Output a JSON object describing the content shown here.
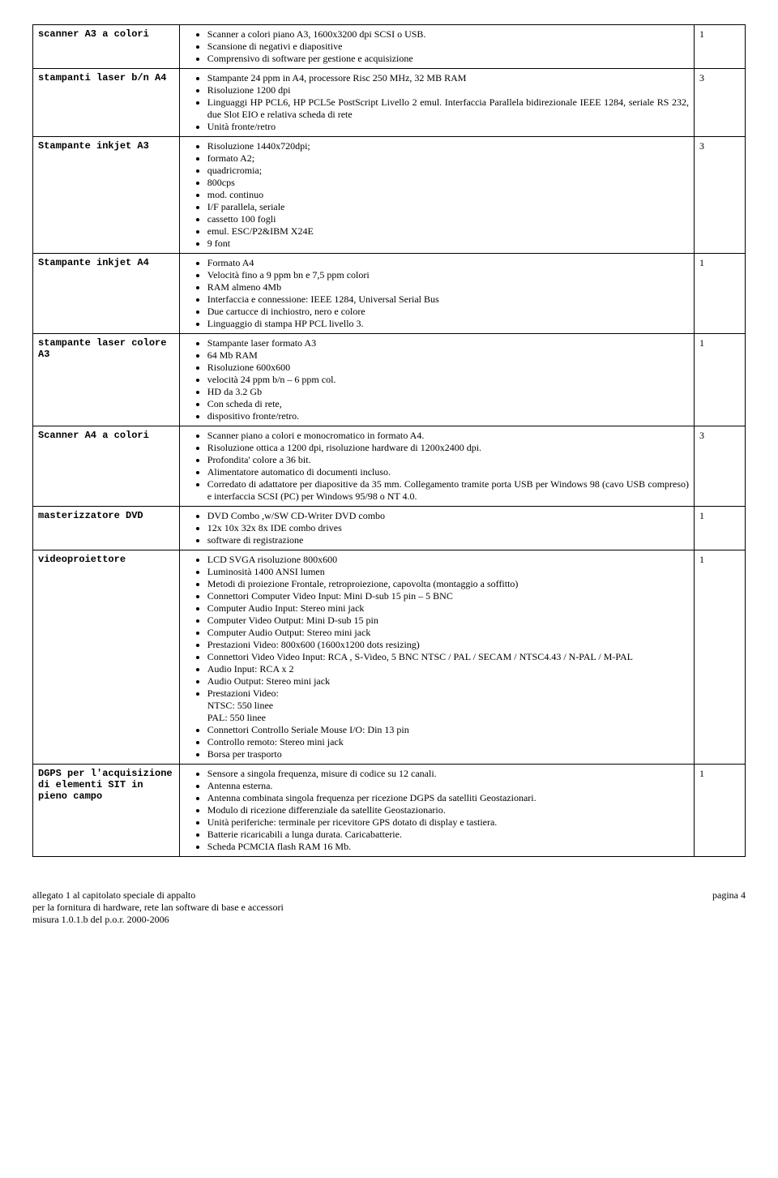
{
  "rows": [
    {
      "label": "scanner A3 a colori",
      "qty": "1",
      "items": [
        "Scanner a colori piano A3, 1600x3200 dpi SCSI o USB.",
        "Scansione di negativi e diapositive",
        "Comprensivo di software per gestione e acquisizione"
      ]
    },
    {
      "label": "stampanti laser b/n A4",
      "qty": "3",
      "items": [
        "Stampante 24 ppm in A4, processore Risc 250 MHz, 32 MB RAM",
        "Risoluzione 1200 dpi",
        "Linguaggi HP PCL6, HP PCL5e PostScript Livello 2 emul. Interfaccia Parallela bidirezionale IEEE 1284, seriale RS 232, due Slot EIO  e relativa scheda di rete",
        "Unità fronte/retro"
      ]
    },
    {
      "label": "Stampante inkjet A3",
      "qty": "3",
      "items": [
        "Risoluzione 1440x720dpi;",
        "formato A2;",
        "quadricromia;",
        "800cps",
        "mod. continuo",
        "I/F parallela, seriale",
        "cassetto 100 fogli",
        "emul. ESC/P2&IBM X24E",
        "9 font"
      ]
    },
    {
      "label": "Stampante inkjet A4",
      "qty": "1",
      "items": [
        "Formato A4",
        "Velocità fino a 9 ppm bn e 7,5 ppm colori",
        "RAM almeno 4Mb",
        "Interfaccia e connessione: IEEE 1284, Universal Serial Bus",
        "Due cartucce di inchiostro, nero e colore",
        "Linguaggio di stampa HP PCL livello 3."
      ]
    },
    {
      "label": "stampante laser colore A3",
      "qty": "1",
      "items": [
        "Stampante laser formato A3",
        "64 Mb RAM",
        "Risoluzione 600x600",
        "velocità 24 ppm b/n – 6 ppm col.",
        "HD da 3.2 Gb",
        "Con scheda di rete,",
        "dispositivo fronte/retro."
      ]
    },
    {
      "label": "Scanner A4 a colori",
      "qty": "3",
      "items": [
        "Scanner piano a colori e monocromatico in formato A4.",
        "Risoluzione ottica a 1200 dpi, risoluzione hardware di 1200x2400 dpi.",
        "Profondita' colore a 36 bit.",
        "Alimentatore automatico di documenti incluso.",
        "Corredato di adattatore per diapositive da 35 mm. Collegamento tramite porta USB per Windows 98 (cavo USB compreso) e interfaccia SCSI (PC) per Windows 95/98 o NT 4.0."
      ]
    },
    {
      "label": "masterizzatore DVD",
      "qty": "1",
      "items": [
        "DVD Combo ,w/SW CD-Writer DVD combo",
        "12x 10x 32x 8x IDE combo drives",
        "software di registrazione"
      ]
    },
    {
      "label": "videoproiettore",
      "qty": "1",
      "items": [
        "LCD SVGA risoluzione 800x600",
        "Luminosità 1400 ANSI lumen",
        "Metodi di proiezione Frontale, retroproiezione, capovolta (montaggio a soffitto)",
        "Connettori Computer Video Input: Mini D-sub 15 pin – 5 BNC",
        "Computer Audio Input: Stereo mini jack",
        "Computer Video Output: Mini D-sub 15 pin",
        "Computer Audio Output: Stereo mini jack",
        "Prestazioni Video: 800x600 (1600x1200 dots resizing)",
        "Connettori Video Video Input: RCA , S-Video, 5 BNC NTSC / PAL / SECAM / NTSC4.43 / N-PAL / M-PAL",
        "Audio Input: RCA x 2",
        "Audio Output: Stereo mini jack",
        {
          "text": "Prestazioni Video:",
          "follow": [
            "NTSC: 550 linee",
            "PAL: 550 linee"
          ]
        },
        "Connettori Controllo Seriale Mouse I/O: Din 13 pin",
        "Controllo remoto: Stereo mini jack",
        "Borsa per trasporto"
      ]
    },
    {
      "label": "DGPS per l'acquisizione di elementi SIT in pieno campo",
      "qty": "1",
      "items": [
        "Sensore a singola frequenza, misure di codice su 12 canali.",
        "Antenna esterna.",
        "Antenna combinata singola frequenza per ricezione DGPS da satelliti Geostazionari.",
        "Modulo di ricezione differenziale da satellite Geostazionario.",
        "Unità periferiche: terminale per ricevitore GPS dotato di display e tastiera.",
        "Batterie ricaricabili  a lunga durata. Caricabatterie.",
        "Scheda PCMCIA flash RAM 16 Mb."
      ]
    }
  ],
  "footer": {
    "line1": "allegato 1 al capitolato speciale di appalto",
    "line2": "per la fornitura di hardware, rete lan software di base e accessori",
    "line3": "misura 1.0.1.b del p.o.r. 2000-2006",
    "page": "pagina 4"
  }
}
